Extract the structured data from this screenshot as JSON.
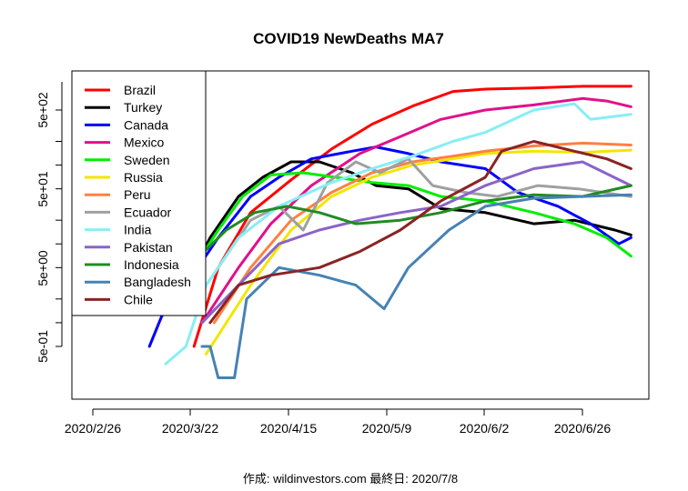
{
  "chart_data": {
    "type": "line",
    "title": "COVID19 NewDeaths MA7",
    "footer": "作成: wildinvestors.com 最終日: 2020/7/8",
    "xlabel": "",
    "ylabel": "",
    "y_scale": "log",
    "x_ticks": [
      "2020/2/26",
      "2020/3/22",
      "2020/4/15",
      "2020/5/9",
      "2020/6/2",
      "2020/6/26"
    ],
    "y_ticks": [
      "5e-01",
      "5e+00",
      "5e+01",
      "5e+02"
    ],
    "legend": {
      "position": "top-left"
    },
    "series": [
      {
        "name": "Brazil",
        "color": "#ff0000",
        "points": [
          [
            "2020-03-22",
            0.5
          ],
          [
            "2020-03-28",
            5
          ],
          [
            "2020-04-05",
            25
          ],
          [
            "2020-04-15",
            65
          ],
          [
            "2020-04-25",
            160
          ],
          [
            "2020-05-05",
            330
          ],
          [
            "2020-05-15",
            560
          ],
          [
            "2020-05-25",
            860
          ],
          [
            "2020-06-02",
            920
          ],
          [
            "2020-06-14",
            950
          ],
          [
            "2020-06-26",
            1000
          ],
          [
            "2020-07-08",
            1000
          ]
        ]
      },
      {
        "name": "Turkey",
        "color": "#000000",
        "points": [
          [
            "2020-03-20",
            3
          ],
          [
            "2020-03-26",
            12
          ],
          [
            "2020-04-02",
            40
          ],
          [
            "2020-04-08",
            70
          ],
          [
            "2020-04-15",
            110
          ],
          [
            "2020-04-22",
            110
          ],
          [
            "2020-04-30",
            80
          ],
          [
            "2020-05-06",
            55
          ],
          [
            "2020-05-14",
            50
          ],
          [
            "2020-05-22",
            28
          ],
          [
            "2020-06-02",
            25
          ],
          [
            "2020-06-14",
            18
          ],
          [
            "2020-06-24",
            20
          ],
          [
            "2020-07-04",
            15
          ],
          [
            "2020-07-08",
            13
          ]
        ]
      },
      {
        "name": "Canada",
        "color": "#0000ff",
        "points": [
          [
            "2020-03-11",
            0.5
          ],
          [
            "2020-03-14",
            1.2
          ],
          [
            "2020-03-20",
            3
          ],
          [
            "2020-03-28",
            12
          ],
          [
            "2020-04-05",
            40
          ],
          [
            "2020-04-12",
            70
          ],
          [
            "2020-04-20",
            120
          ],
          [
            "2020-04-30",
            150
          ],
          [
            "2020-05-06",
            170
          ],
          [
            "2020-05-14",
            140
          ],
          [
            "2020-05-22",
            110
          ],
          [
            "2020-06-02",
            90
          ],
          [
            "2020-06-10",
            45
          ],
          [
            "2020-06-20",
            30
          ],
          [
            "2020-06-28",
            18
          ],
          [
            "2020-07-05",
            10
          ],
          [
            "2020-07-08",
            12
          ]
        ]
      },
      {
        "name": "Mexico",
        "color": "#e0118a",
        "points": [
          [
            "2020-03-24",
            1
          ],
          [
            "2020-04-02",
            5
          ],
          [
            "2020-04-10",
            18
          ],
          [
            "2020-04-20",
            55
          ],
          [
            "2020-05-02",
            140
          ],
          [
            "2020-05-12",
            230
          ],
          [
            "2020-05-22",
            380
          ],
          [
            "2020-06-02",
            500
          ],
          [
            "2020-06-14",
            580
          ],
          [
            "2020-06-26",
            700
          ],
          [
            "2020-07-02",
            650
          ],
          [
            "2020-07-08",
            550
          ]
        ]
      },
      {
        "name": "Sweden",
        "color": "#00ee00",
        "points": [
          [
            "2020-03-16",
            1.5
          ],
          [
            "2020-03-22",
            5
          ],
          [
            "2020-03-28",
            15
          ],
          [
            "2020-04-03",
            40
          ],
          [
            "2020-04-10",
            75
          ],
          [
            "2020-04-18",
            80
          ],
          [
            "2020-04-26",
            70
          ],
          [
            "2020-05-05",
            60
          ],
          [
            "2020-05-14",
            55
          ],
          [
            "2020-05-22",
            40
          ],
          [
            "2020-06-02",
            35
          ],
          [
            "2020-06-14",
            25
          ],
          [
            "2020-06-24",
            18
          ],
          [
            "2020-07-02",
            12
          ],
          [
            "2020-07-08",
            7
          ]
        ]
      },
      {
        "name": "Russia",
        "color": "#f2e600",
        "points": [
          [
            "2020-03-25",
            0.4
          ],
          [
            "2020-03-30",
            1
          ],
          [
            "2020-04-05",
            3
          ],
          [
            "2020-04-15",
            15
          ],
          [
            "2020-04-25",
            40
          ],
          [
            "2020-05-05",
            70
          ],
          [
            "2020-05-15",
            100
          ],
          [
            "2020-05-25",
            120
          ],
          [
            "2020-06-02",
            140
          ],
          [
            "2020-06-14",
            150
          ],
          [
            "2020-06-26",
            145
          ],
          [
            "2020-07-08",
            155
          ]
        ]
      },
      {
        "name": "Peru",
        "color": "#ff8040",
        "points": [
          [
            "2020-03-27",
            1
          ],
          [
            "2020-04-05",
            5
          ],
          [
            "2020-04-15",
            20
          ],
          [
            "2020-04-25",
            45
          ],
          [
            "2020-05-05",
            80
          ],
          [
            "2020-05-15",
            110
          ],
          [
            "2020-05-25",
            130
          ],
          [
            "2020-06-02",
            150
          ],
          [
            "2020-06-14",
            175
          ],
          [
            "2020-06-26",
            190
          ],
          [
            "2020-07-08",
            180
          ]
        ]
      },
      {
        "name": "Ecuador",
        "color": "#a0a0a0",
        "points": [
          [
            "2020-03-21",
            1.5
          ],
          [
            "2020-03-28",
            5
          ],
          [
            "2020-04-05",
            20
          ],
          [
            "2020-04-12",
            30
          ],
          [
            "2020-04-18",
            15
          ],
          [
            "2020-04-24",
            60
          ],
          [
            "2020-05-01",
            110
          ],
          [
            "2020-05-07",
            80
          ],
          [
            "2020-05-14",
            120
          ],
          [
            "2020-05-20",
            55
          ],
          [
            "2020-05-28",
            45
          ],
          [
            "2020-06-05",
            40
          ],
          [
            "2020-06-15",
            55
          ],
          [
            "2020-06-25",
            50
          ],
          [
            "2020-07-08",
            40
          ]
        ]
      },
      {
        "name": "India",
        "color": "#87eef5",
        "points": [
          [
            "2020-03-15",
            0.3
          ],
          [
            "2020-03-20",
            0.5
          ],
          [
            "2020-03-25",
            3
          ],
          [
            "2020-04-02",
            12
          ],
          [
            "2020-04-12",
            30
          ],
          [
            "2020-04-25",
            60
          ],
          [
            "2020-05-05",
            90
          ],
          [
            "2020-05-15",
            130
          ],
          [
            "2020-05-25",
            200
          ],
          [
            "2020-06-02",
            260
          ],
          [
            "2020-06-14",
            500
          ],
          [
            "2020-06-24",
            600
          ],
          [
            "2020-06-28",
            380
          ],
          [
            "2020-07-08",
            440
          ]
        ]
      },
      {
        "name": "Pakistan",
        "color": "#8a64c8",
        "points": [
          [
            "2020-03-24",
            1
          ],
          [
            "2020-04-02",
            3
          ],
          [
            "2020-04-12",
            10
          ],
          [
            "2020-04-22",
            15
          ],
          [
            "2020-05-02",
            20
          ],
          [
            "2020-05-12",
            25
          ],
          [
            "2020-05-22",
            30
          ],
          [
            "2020-06-02",
            55
          ],
          [
            "2020-06-14",
            90
          ],
          [
            "2020-06-26",
            110
          ],
          [
            "2020-07-08",
            55
          ]
        ]
      },
      {
        "name": "Indonesia",
        "color": "#228b22",
        "points": [
          [
            "2020-03-16",
            2
          ],
          [
            "2020-03-22",
            6
          ],
          [
            "2020-03-30",
            15
          ],
          [
            "2020-04-06",
            25
          ],
          [
            "2020-04-14",
            30
          ],
          [
            "2020-04-22",
            25
          ],
          [
            "2020-05-01",
            18
          ],
          [
            "2020-05-12",
            20
          ],
          [
            "2020-05-22",
            25
          ],
          [
            "2020-06-02",
            35
          ],
          [
            "2020-06-14",
            42
          ],
          [
            "2020-06-26",
            40
          ],
          [
            "2020-07-08",
            55
          ]
        ]
      },
      {
        "name": "Bangladesh",
        "color": "#4682b4",
        "points": [
          [
            "2020-03-24",
            0.5
          ],
          [
            "2020-03-26",
            0.5
          ],
          [
            "2020-03-28",
            0.2
          ],
          [
            "2020-04-01",
            0.2
          ],
          [
            "2020-04-04",
            2
          ],
          [
            "2020-04-12",
            5
          ],
          [
            "2020-04-22",
            4
          ],
          [
            "2020-05-01",
            3
          ],
          [
            "2020-05-08",
            1.5
          ],
          [
            "2020-05-14",
            5
          ],
          [
            "2020-05-24",
            15
          ],
          [
            "2020-06-02",
            30
          ],
          [
            "2020-06-14",
            38
          ],
          [
            "2020-06-26",
            40
          ],
          [
            "2020-07-08",
            42
          ]
        ]
      },
      {
        "name": "Chile",
        "color": "#8b2323",
        "points": [
          [
            "2020-03-26",
            1
          ],
          [
            "2020-04-02",
            3
          ],
          [
            "2020-04-10",
            4
          ],
          [
            "2020-04-22",
            5
          ],
          [
            "2020-05-02",
            8
          ],
          [
            "2020-05-12",
            15
          ],
          [
            "2020-05-22",
            35
          ],
          [
            "2020-06-02",
            70
          ],
          [
            "2020-06-06",
            150
          ],
          [
            "2020-06-14",
            200
          ],
          [
            "2020-06-24",
            150
          ],
          [
            "2020-07-02",
            120
          ],
          [
            "2020-07-08",
            90
          ]
        ]
      }
    ]
  }
}
